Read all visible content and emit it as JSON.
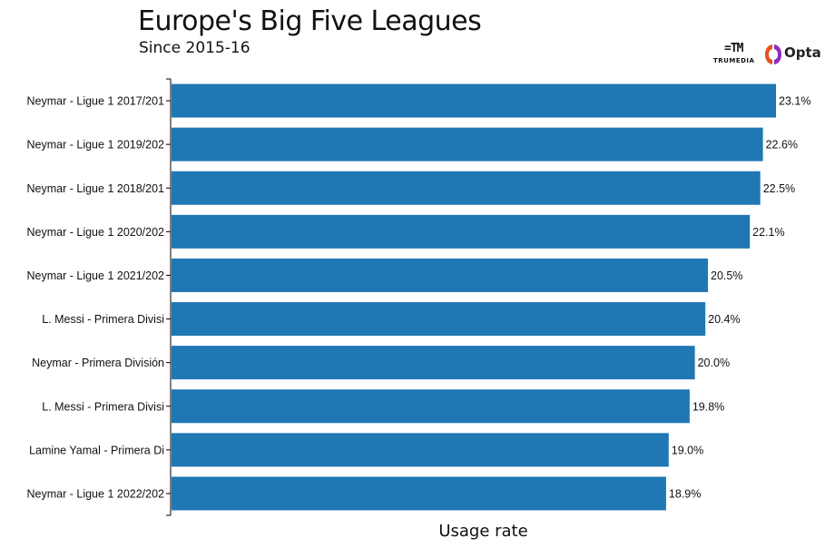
{
  "header": {
    "title": "Europe's Big Five Leagues",
    "subtitle": "Since 2015-16"
  },
  "logos": {
    "trumedia_mark": "=TM",
    "trumedia_word": "TRUMEDIA",
    "opta_word": "Opta"
  },
  "colors": {
    "bar": "#1f77b4",
    "opta_left": "#e8501e",
    "opta_right": "#8e2bbf"
  },
  "chart_data": {
    "type": "bar",
    "orientation": "horizontal",
    "categories": [
      "Neymar - Ligue 1 2017/201",
      "Neymar - Ligue 1 2019/202",
      "Neymar - Ligue 1 2018/201",
      "Neymar - Ligue 1 2020/202",
      "Neymar - Ligue 1 2021/202",
      "L. Messi - Primera Divisi",
      "Neymar - Primera División",
      "L. Messi - Primera Divisi",
      "Lamine Yamal - Primera Di",
      "Neymar - Ligue 1 2022/202"
    ],
    "values": [
      23.1,
      22.6,
      22.5,
      22.1,
      20.5,
      20.4,
      20.0,
      19.8,
      19.0,
      18.9
    ],
    "value_labels": [
      "23.1%",
      "22.6%",
      "22.5%",
      "22.1%",
      "20.5%",
      "20.4%",
      "20.0%",
      "19.8%",
      "19.0%",
      "18.9%"
    ],
    "title": "Europe's Big Five Leagues",
    "subtitle": "Since 2015-16",
    "xlabel": "Usage rate",
    "ylabel": "",
    "xlim": [
      0,
      23.1
    ],
    "grid": false
  }
}
